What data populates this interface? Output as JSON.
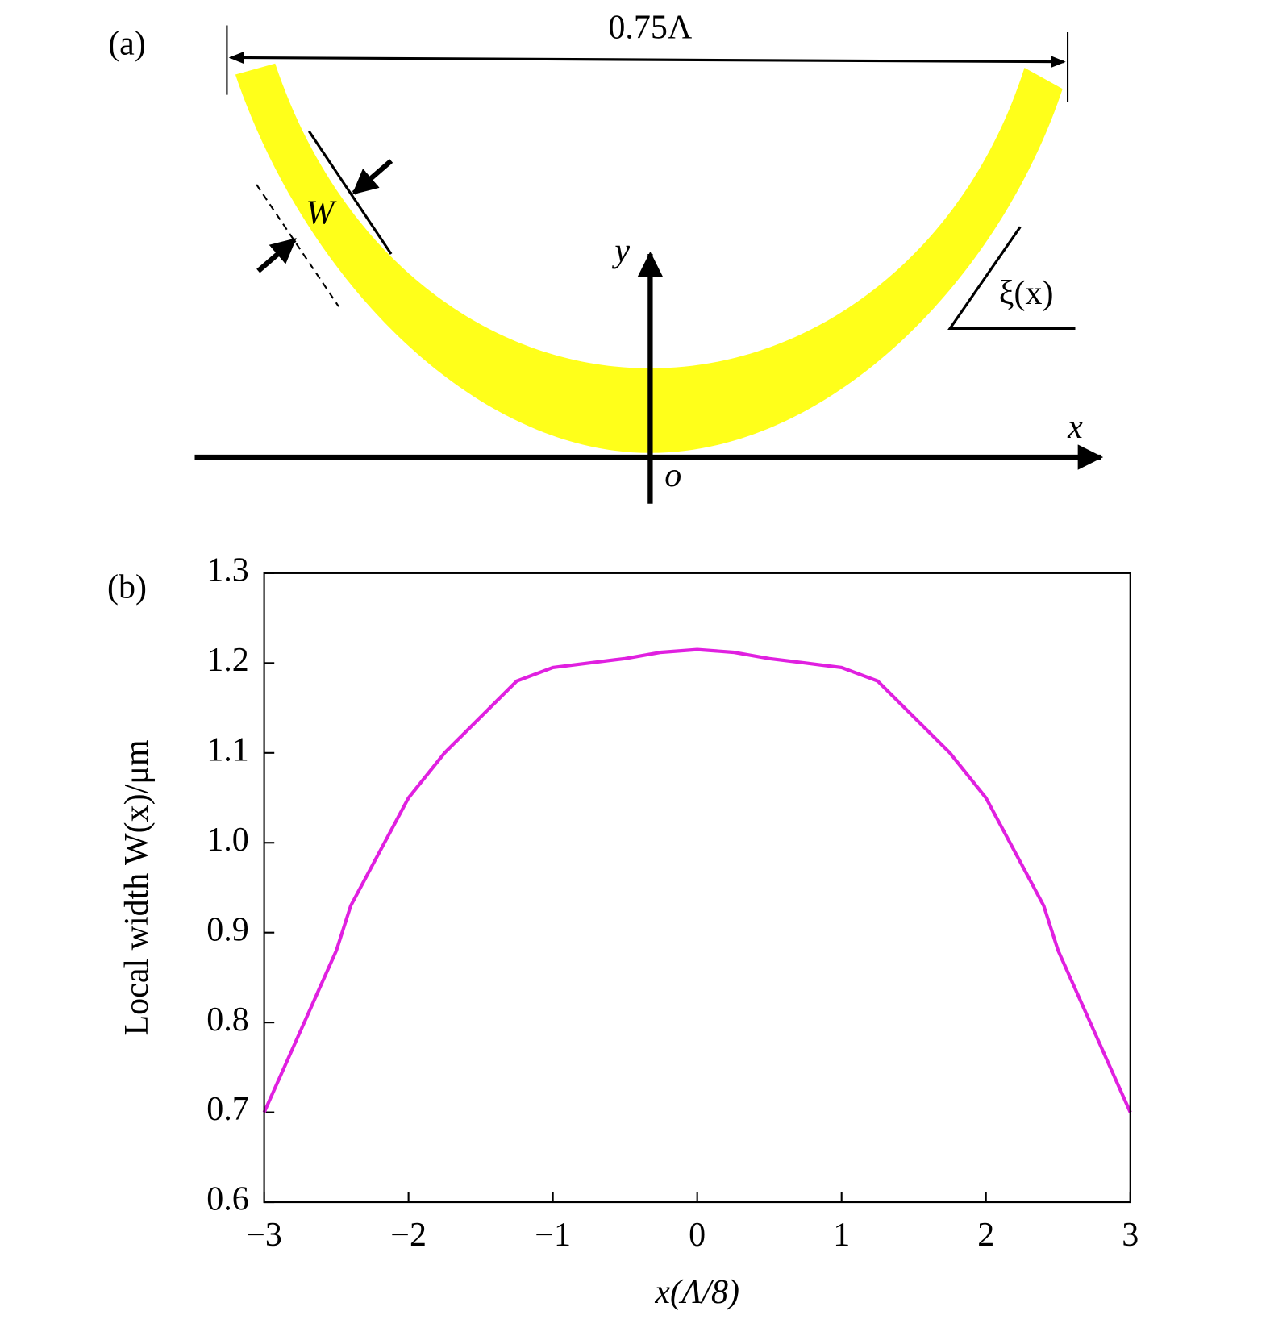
{
  "diagram": {
    "panel": "(a)",
    "span": "0.75Λ",
    "width": "W",
    "y_axis": "y",
    "x_axis": "x",
    "origin": "o",
    "profile": "ξ(x)"
  },
  "chart_data": {
    "type": "line",
    "panel": "(b)",
    "x_label": "x(Λ/8)",
    "y_label": "Local width W(x)/μm",
    "x": [
      -3,
      -2.75,
      -2.5,
      -2.4,
      -2,
      -1.75,
      -1.5,
      -1.25,
      -1,
      -0.75,
      -0.5,
      -0.25,
      0,
      0.25,
      0.5,
      0.75,
      1,
      1.25,
      1.5,
      1.75,
      2,
      2.4,
      2.5,
      2.75,
      3
    ],
    "series": [
      {
        "color": "#e020e0",
        "values": [
          0.7,
          0.79,
          0.88,
          0.93,
          1.05,
          1.1,
          1.14,
          1.18,
          1.195,
          1.2,
          1.205,
          1.212,
          1.215,
          1.212,
          1.205,
          1.2,
          1.195,
          1.18,
          1.14,
          1.1,
          1.05,
          0.93,
          0.88,
          0.79,
          0.7
        ]
      }
    ],
    "xlim": [
      -3,
      3
    ],
    "xticks": [
      {
        "value": -3,
        "label": "−3"
      },
      {
        "value": -2,
        "label": "−2"
      },
      {
        "value": -1,
        "label": "−1"
      },
      0,
      1,
      2,
      3
    ],
    "ylim": [
      0.6,
      1.3
    ],
    "yticks": [
      0.6,
      0.7,
      0.8,
      0.9,
      {
        "value": 1,
        "label": "1.0"
      },
      1.1,
      1.2,
      1.3
    ]
  }
}
